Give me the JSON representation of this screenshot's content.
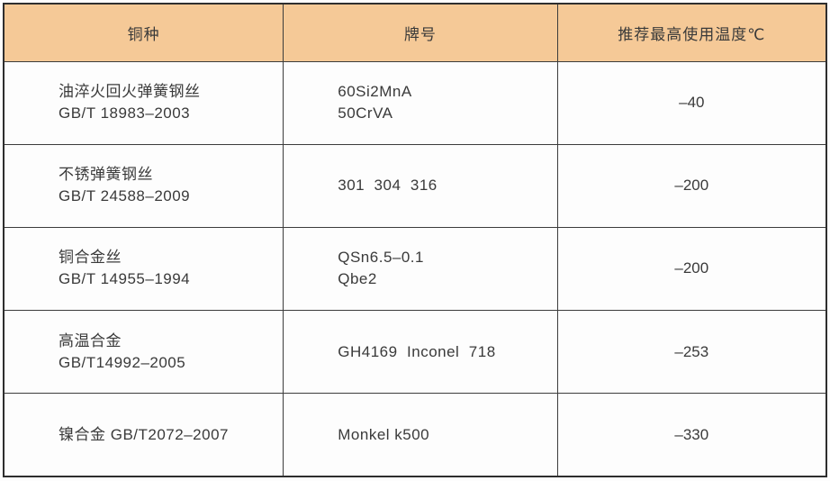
{
  "table": {
    "colors": {
      "header_bg": "#f5c997",
      "border": "#3c3c3c",
      "text": "#3a3a3a"
    },
    "headers": {
      "material": "铜种",
      "grade": "牌号",
      "temperature": "推荐最高使用温度℃"
    },
    "rows": [
      {
        "material_line1": "油淬火回火弹簧钢丝",
        "material_line2": "GB/T 18983–2003",
        "grade_line1": "60Si2MnA",
        "grade_line2": "50CrVA",
        "temperature": "–40"
      },
      {
        "material_line1": "不锈弹簧钢丝",
        "material_line2": "GB/T 24588–2009",
        "grade_line1": "301  304  316",
        "temperature": "–200"
      },
      {
        "material_line1": "铜合金丝",
        "material_line2": "GB/T 14955–1994",
        "grade_line1": "QSn6.5–0.1",
        "grade_line2": "Qbe2",
        "temperature": "–200"
      },
      {
        "material_line1": "高温合金",
        "material_line2": "GB/T14992–2005",
        "grade_line1": "GH4169  Inconel  718",
        "temperature": "–253"
      },
      {
        "material_line1": "镍合金 GB/T2072–2007",
        "grade_line1": "Monkel k500",
        "temperature": "–330"
      }
    ]
  }
}
